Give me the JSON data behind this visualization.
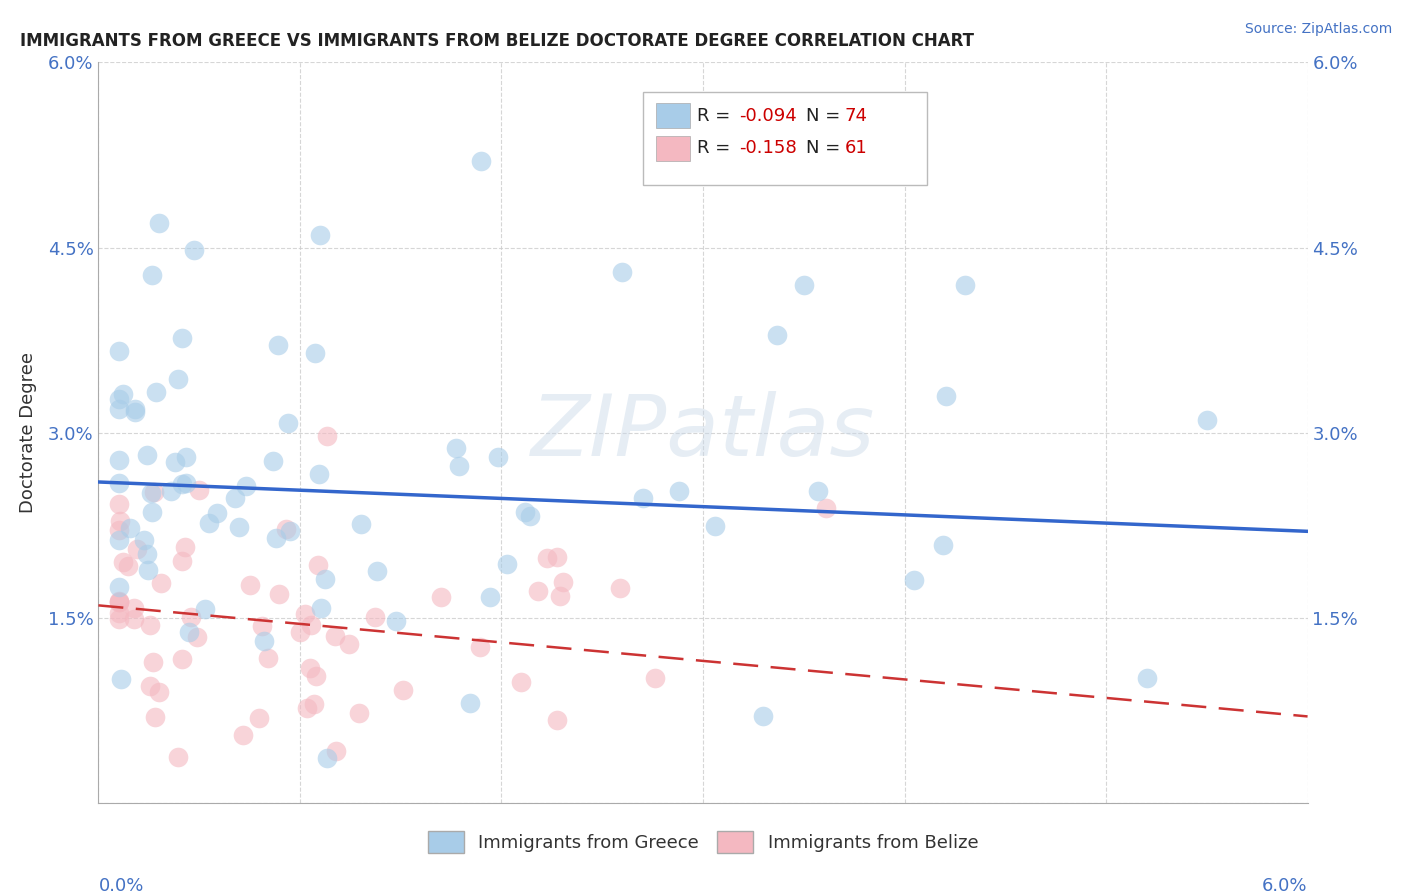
{
  "title": "IMMIGRANTS FROM GREECE VS IMMIGRANTS FROM BELIZE DOCTORATE DEGREE CORRELATION CHART",
  "source": "Source: ZipAtlas.com",
  "ylabel": "Doctorate Degree",
  "ytick_labels": [
    "",
    "1.5%",
    "3.0%",
    "4.5%",
    "6.0%"
  ],
  "ytick_vals": [
    0.0,
    0.015,
    0.03,
    0.045,
    0.06
  ],
  "xlim": [
    0.0,
    0.06
  ],
  "ylim": [
    0.0,
    0.06
  ],
  "greece_R": -0.094,
  "greece_N": 74,
  "belize_R": -0.158,
  "belize_N": 61,
  "greece_color": "#a8cce8",
  "belize_color": "#f4b8c1",
  "greece_line_color": "#3366cc",
  "belize_line_color": "#cc3333",
  "background_color": "#ffffff",
  "grid_color": "#cccccc",
  "legend_text_color": "#3366cc",
  "legend_r_color": "#cc0000",
  "tick_color": "#4472c4"
}
